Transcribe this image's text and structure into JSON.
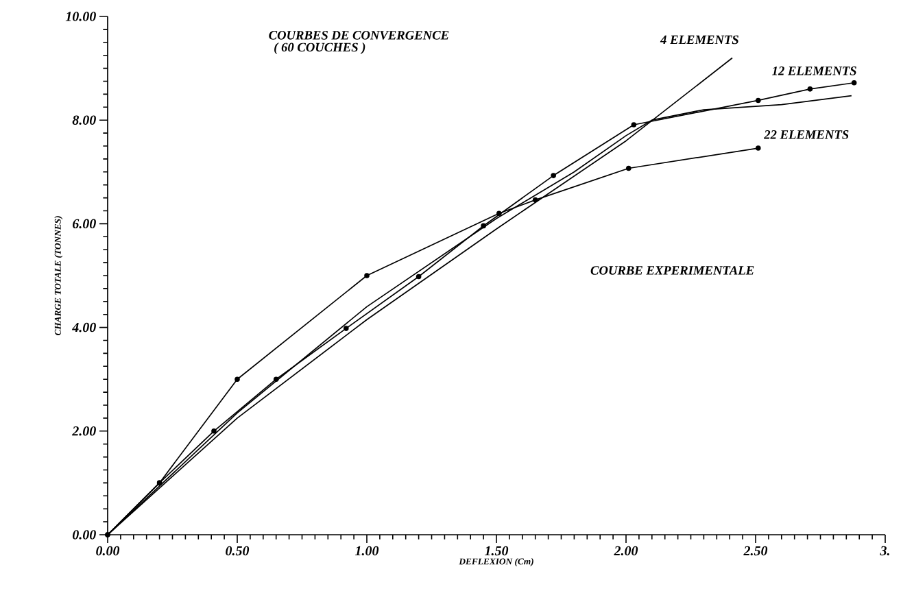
{
  "chart_data": {
    "type": "line",
    "title": "COURBES DE CONVERGENCE",
    "subtitle": "( 60 COUCHES )",
    "xlabel": "DEFLEXION (Cm)",
    "ylabel": "CHARGE TOTALE (TONNES)",
    "xlim": [
      0,
      3
    ],
    "ylim": [
      0,
      10
    ],
    "xticks": [
      {
        "value": 0,
        "label": "0.00"
      },
      {
        "value": 0.5,
        "label": "0.50"
      },
      {
        "value": 1,
        "label": "1.00"
      },
      {
        "value": 1.5,
        "label": "1.50"
      },
      {
        "value": 2,
        "label": "2.00"
      },
      {
        "value": 2.5,
        "label": "2.50"
      },
      {
        "value": 3,
        "label": "3."
      }
    ],
    "yticks": [
      {
        "value": 0,
        "label": "0.00"
      },
      {
        "value": 2,
        "label": "2.00"
      },
      {
        "value": 4,
        "label": "4.00"
      },
      {
        "value": 6,
        "label": "6.00"
      },
      {
        "value": 8,
        "label": "8.00"
      },
      {
        "value": 10,
        "label": "10.00"
      }
    ],
    "annotations": [
      "COURBE EXPERIMENTALE"
    ],
    "grid": false,
    "legend": false,
    "line_style": "solid",
    "series": [
      {
        "name": "4 ELEMENTS",
        "color": "#000000",
        "marker": "none",
        "x": [
          0,
          0.5,
          1.0,
          1.5,
          2.0,
          2.41
        ],
        "values": [
          0,
          2.25,
          4.15,
          5.9,
          7.6,
          9.2
        ]
      },
      {
        "name": "12 ELEMENTS",
        "color": "#000000",
        "marker": "circle",
        "x": [
          0,
          0.2,
          0.41,
          0.65,
          0.92,
          1.2,
          1.45,
          1.72,
          2.03,
          2.51,
          2.71,
          2.88
        ],
        "values": [
          0,
          1.0,
          2.0,
          3.0,
          3.98,
          4.98,
          5.96,
          6.93,
          7.91,
          8.38,
          8.6,
          8.72
        ]
      },
      {
        "name": "22 ELEMENTS",
        "color": "#000000",
        "marker": "circle",
        "x": [
          0,
          0.2,
          0.5,
          1.0,
          1.51,
          1.65,
          2.01,
          2.51
        ],
        "values": [
          0,
          1.0,
          3.0,
          5.0,
          6.2,
          6.46,
          7.07,
          7.46
        ]
      },
      {
        "color": "#000000",
        "marker": "none",
        "x": [
          0,
          0.5,
          1.0,
          1.5,
          1.8,
          2.0,
          2.1,
          2.3,
          2.6,
          2.87
        ],
        "values": [
          0,
          2.35,
          4.4,
          6.1,
          7.0,
          7.7,
          8.0,
          8.2,
          8.3,
          8.47
        ]
      }
    ]
  }
}
